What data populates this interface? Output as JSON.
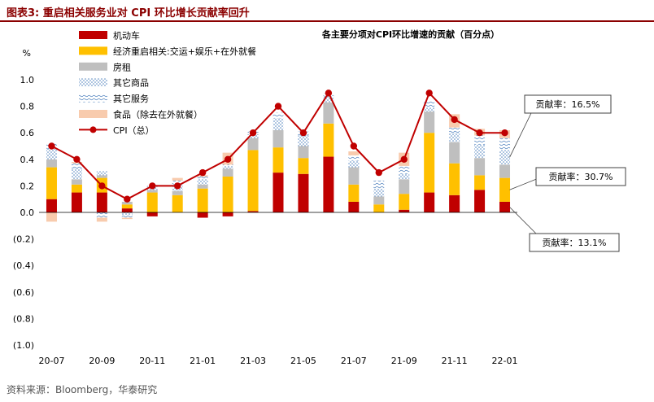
{
  "figure": {
    "title": "图表3:   重启相关服务业对 CPI 环比增长贡献率回升",
    "source": "资料来源：Bloomberg，华泰研究"
  },
  "chart_data": {
    "type": "bar",
    "stacked": true,
    "title": "各主要分项对CPI环比增速的贡献（百分点）",
    "ylabel": "%",
    "ylim": [
      -1.0,
      1.0
    ],
    "ytick_step": 0.2,
    "ytick_labels": [
      "1.0",
      "0.8",
      "0.6",
      "0.4",
      "0.2",
      "0.0",
      "(0.2)",
      "(0.4)",
      "(0.6)",
      "(0.8)",
      "(1.0)"
    ],
    "categories": [
      "20-07",
      "20-08",
      "20-09",
      "20-10",
      "20-11",
      "20-12",
      "21-01",
      "21-02",
      "21-03",
      "21-04",
      "21-05",
      "21-06",
      "21-07",
      "21-08",
      "21-09",
      "21-10",
      "21-11",
      "21-12",
      "22-01"
    ],
    "xtick_labels": [
      "20-07",
      "",
      "20-09",
      "",
      "20-11",
      "",
      "21-01",
      "",
      "21-03",
      "",
      "21-05",
      "",
      "21-07",
      "",
      "21-09",
      "",
      "21-11",
      "",
      "22-01"
    ],
    "series": [
      {
        "name": "机动车",
        "color": "#c00000",
        "pattern": "solid",
        "values": [
          0.1,
          0.15,
          0.15,
          0.03,
          -0.03,
          0.0,
          -0.04,
          -0.03,
          0.01,
          0.3,
          0.29,
          0.42,
          0.08,
          0.0,
          0.02,
          0.15,
          0.13,
          0.17,
          0.08
        ]
      },
      {
        "name": "经济重启相关:交运+娱乐+在外就餐",
        "color": "#ffc000",
        "pattern": "solid",
        "values": [
          0.24,
          0.06,
          0.11,
          0.03,
          0.15,
          0.13,
          0.18,
          0.27,
          0.46,
          0.19,
          0.12,
          0.25,
          0.13,
          0.06,
          0.12,
          0.45,
          0.24,
          0.11,
          0.18
        ]
      },
      {
        "name": "房租",
        "color": "#bfbfbf",
        "pattern": "solid",
        "values": [
          0.06,
          0.04,
          0.02,
          0.02,
          0.02,
          0.03,
          0.03,
          0.06,
          0.09,
          0.13,
          0.09,
          0.16,
          0.13,
          0.06,
          0.11,
          0.16,
          0.16,
          0.13,
          0.1
        ]
      },
      {
        "name": "其它商品",
        "color": "#5b9bd5",
        "pattern": "dots",
        "values": [
          0.08,
          0.08,
          0.03,
          -0.02,
          0.03,
          0.05,
          0.04,
          0.02,
          0.03,
          0.09,
          0.08,
          0.05,
          0.05,
          0.06,
          0.04,
          0.03,
          0.07,
          0.1,
          0.11
        ]
      },
      {
        "name": "其它服务",
        "color": "#5b9bd5",
        "pattern": "waves",
        "values": [
          0.04,
          0.04,
          -0.04,
          -0.02,
          0.01,
          0.03,
          0.02,
          0.01,
          0.02,
          0.04,
          0.03,
          0.02,
          0.04,
          0.06,
          0.06,
          0.05,
          0.04,
          0.07,
          0.09
        ]
      },
      {
        "name": "食品（除去在外就餐）",
        "color": "#f8cbad",
        "pattern": "solid",
        "values": [
          -0.07,
          0.01,
          -0.03,
          -0.01,
          0.0,
          0.02,
          0.01,
          0.09,
          0.0,
          0.0,
          0.0,
          0.0,
          0.03,
          0.0,
          0.1,
          0.0,
          0.1,
          0.05,
          0.06
        ]
      }
    ],
    "line": {
      "name": "CPI（总）",
      "color": "#c00000",
      "values": [
        0.5,
        0.4,
        0.2,
        0.1,
        0.2,
        0.2,
        0.3,
        0.4,
        0.6,
        0.8,
        0.6,
        0.9,
        0.5,
        0.3,
        0.4,
        0.9,
        0.7,
        0.6,
        0.6
      ]
    },
    "legend_position": "top-left",
    "annotations": [
      {
        "text": "贡献率：16.5%",
        "points_to": "其它商品"
      },
      {
        "text": "贡献率：30.7%",
        "points_to": "经济重启相关:交运+娱乐+在外就餐"
      },
      {
        "text": "贡献率：13.1%",
        "points_to": "机动车"
      }
    ]
  }
}
